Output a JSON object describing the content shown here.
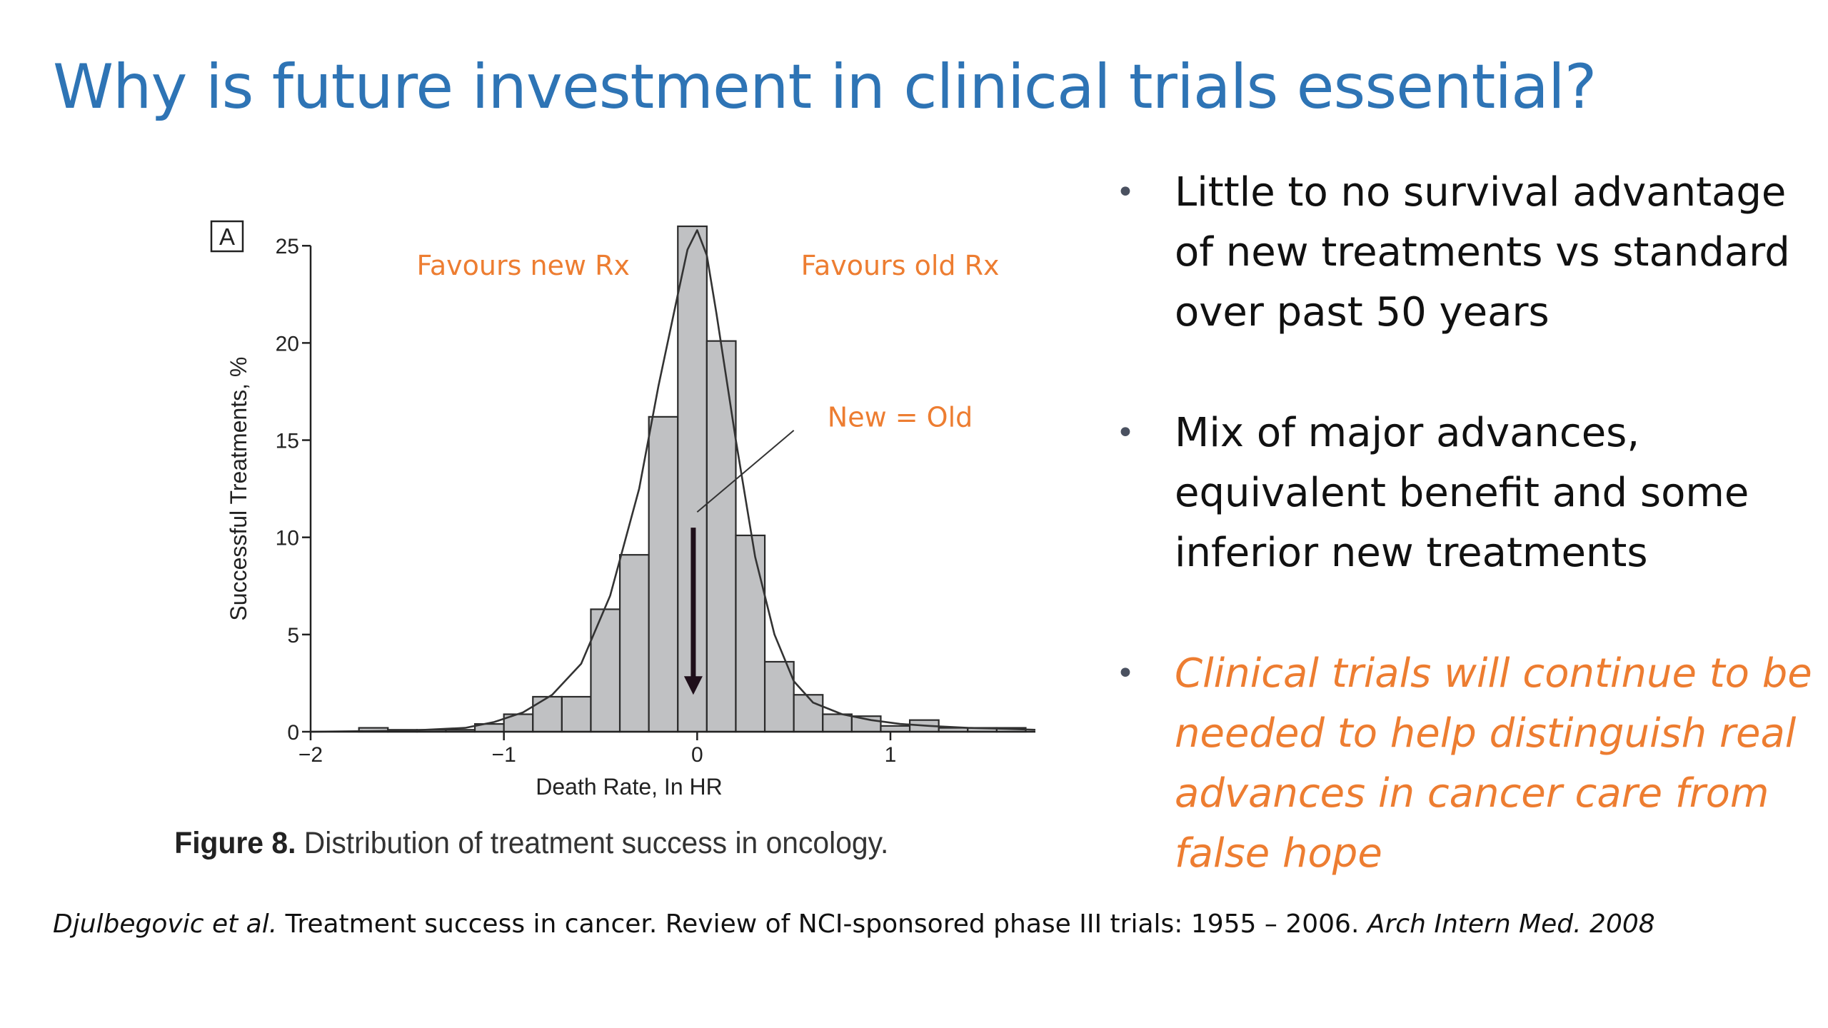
{
  "slide": {
    "title": "Why is future investment in clinical trials essential?"
  },
  "figure": {
    "panel_label": "A",
    "caption_bold": "Figure 8.",
    "caption_text": " Distribution of treatment success in oncology."
  },
  "bullets": [
    {
      "text": "Little to no survival advantage of new treatments vs standard over past 50 years",
      "style": "normal"
    },
    {
      "text": "Mix of major advances, equivalent benefit and some inferior new treatments",
      "style": "normal"
    },
    {
      "text": "Clinical trials will continue to be needed to help distinguish real advances in cancer care from false hope",
      "style": "emphasis"
    }
  ],
  "citation": {
    "authors": "Djulbegovic et al.",
    "title": " Treatment success in cancer. Review of NCI-sponsored phase III trials: 1955 – 2006. ",
    "journal": "Arch Intern Med. 2008"
  },
  "colors": {
    "title": "#2e74b5",
    "annotation": "#ed7d31",
    "bar_fill": "#c0c1c3",
    "bar_stroke": "#2b2b2b",
    "arrow": "#1f0f1a"
  },
  "chart_data": {
    "type": "bar",
    "subtype": "histogram-with-density-curve",
    "xlabel": "Death Rate, In HR",
    "ylabel": "Successful Treatments, %",
    "xlim": [
      -2,
      1.75
    ],
    "ylim": [
      0,
      26
    ],
    "xticks": [
      -2,
      -1,
      0,
      1
    ],
    "xtick_labels": [
      "−2",
      "−1",
      "0",
      "1"
    ],
    "yticks": [
      0,
      5,
      10,
      15,
      20,
      25
    ],
    "bin_width": 0.15,
    "bins": [
      {
        "x0": -1.75,
        "value": 0.2
      },
      {
        "x0": -1.6,
        "value": 0.1
      },
      {
        "x0": -1.45,
        "value": 0.1
      },
      {
        "x0": -1.3,
        "value": 0.1
      },
      {
        "x0": -1.15,
        "value": 0.4
      },
      {
        "x0": -1.0,
        "value": 0.9
      },
      {
        "x0": -0.85,
        "value": 1.8
      },
      {
        "x0": -0.7,
        "value": 1.8
      },
      {
        "x0": -0.55,
        "value": 6.3
      },
      {
        "x0": -0.4,
        "value": 9.1
      },
      {
        "x0": -0.25,
        "value": 16.2
      },
      {
        "x0": -0.1,
        "value": 26.0
      },
      {
        "x0": 0.05,
        "value": 20.1
      },
      {
        "x0": 0.2,
        "value": 10.1
      },
      {
        "x0": 0.35,
        "value": 3.6
      },
      {
        "x0": 0.5,
        "value": 1.9
      },
      {
        "x0": 0.65,
        "value": 0.9
      },
      {
        "x0": 0.8,
        "value": 0.8
      },
      {
        "x0": 0.95,
        "value": 0.3
      },
      {
        "x0": 1.1,
        "value": 0.6
      },
      {
        "x0": 1.25,
        "value": 0.2
      },
      {
        "x0": 1.4,
        "value": 0.2
      },
      {
        "x0": 1.55,
        "value": 0.2
      }
    ],
    "density_curve": {
      "x": [
        -2.0,
        -1.5,
        -1.2,
        -1.05,
        -0.9,
        -0.75,
        -0.6,
        -0.45,
        -0.3,
        -0.2,
        -0.1,
        -0.05,
        0.0,
        0.05,
        0.1,
        0.2,
        0.3,
        0.4,
        0.5,
        0.6,
        0.75,
        0.9,
        1.05,
        1.2,
        1.4,
        1.6,
        1.75
      ],
      "y": [
        0.0,
        0.05,
        0.2,
        0.5,
        1.0,
        1.9,
        3.5,
        7.0,
        12.5,
        17.8,
        22.5,
        24.8,
        25.8,
        24.5,
        21.5,
        15.0,
        9.0,
        5.0,
        2.6,
        1.5,
        0.9,
        0.6,
        0.4,
        0.3,
        0.2,
        0.15,
        0.1
      ]
    },
    "annotations": [
      {
        "text": "Favours new Rx",
        "x": -0.9,
        "y": 23.5
      },
      {
        "text": "Favours old Rx",
        "x": 1.05,
        "y": 23.5
      },
      {
        "text": "New = Old",
        "x": 1.05,
        "y": 15.7
      }
    ],
    "arrow": {
      "x": -0.02,
      "y_from": 10.5,
      "y_to": 1.9
    },
    "leader_line": {
      "x_from": 0.5,
      "y_from": 15.5,
      "x_to": 0.0,
      "y_to": 11.3
    }
  }
}
